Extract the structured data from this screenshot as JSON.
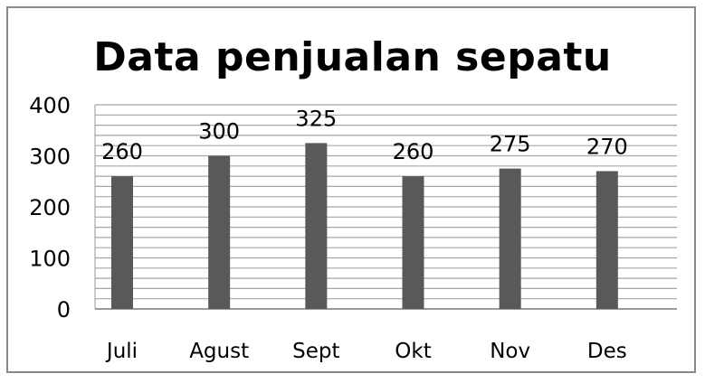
{
  "chart_data": {
    "type": "bar",
    "title": "Data penjualan sepatu",
    "categories": [
      "Juli",
      "Agust",
      "Sept",
      "Okt",
      "Nov",
      "Des"
    ],
    "values": [
      260,
      300,
      325,
      260,
      275,
      270
    ],
    "ylim": [
      0,
      400
    ],
    "yticks": [
      0,
      100,
      200,
      300,
      400
    ],
    "grid": true,
    "bar_color": "#595959",
    "data_labels": true,
    "legend": "none"
  }
}
